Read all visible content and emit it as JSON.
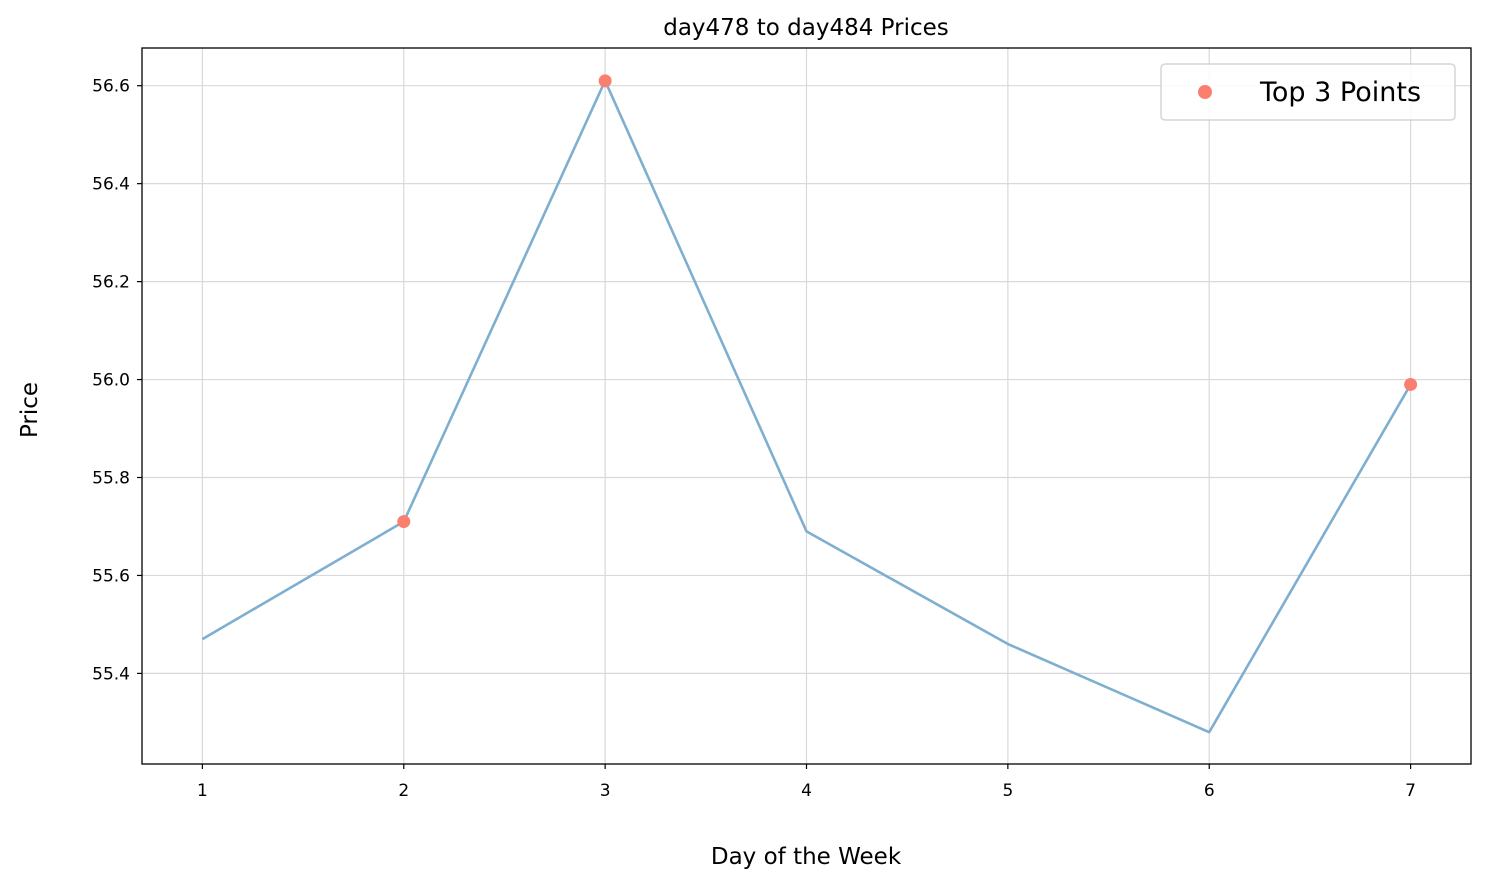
{
  "chart_data": {
    "type": "line",
    "title": "day478 to day484 Prices",
    "xlabel": "Day of the Week",
    "ylabel": "Price",
    "x": [
      1,
      2,
      3,
      4,
      5,
      6,
      7
    ],
    "xlim": [
      0.7,
      7.3
    ],
    "ylim": [
      55.215,
      56.677
    ],
    "xticks": [
      1,
      2,
      3,
      4,
      5,
      6,
      7
    ],
    "yticks": [
      55.4,
      55.6,
      55.8,
      56.0,
      56.2,
      56.4,
      56.6
    ],
    "grid": true,
    "legend_position": "top-right",
    "series": [
      {
        "values": [
          55.47,
          55.71,
          56.61,
          55.69,
          55.46,
          55.28,
          55.99
        ],
        "color": "#7fafd0"
      }
    ],
    "highlights": {
      "name": "Top 3 Points",
      "color": "#fa7f6f",
      "x": [
        2,
        3,
        7
      ],
      "y": [
        55.71,
        56.61,
        55.99
      ]
    }
  }
}
